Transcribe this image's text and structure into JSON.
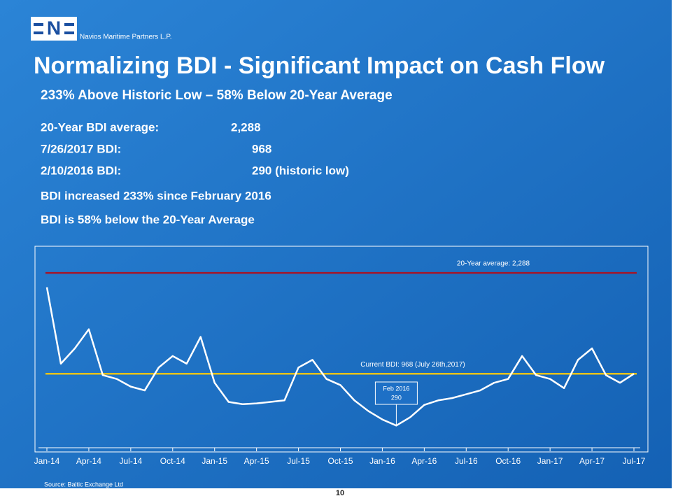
{
  "logo": "N",
  "company": "Navios Maritime Partners L.P.",
  "title": "Normalizing BDI  - Significant Impact on Cash Flow",
  "subtitle": "233% Above Historic Low – 58% Below 20-Year Average",
  "stats": [
    [
      "20-Year BDI average:",
      "2,288"
    ],
    [
      "7/26/2017 BDI:",
      "968"
    ],
    [
      "2/10/2016  BDI:",
      "290 (historic low)"
    ]
  ],
  "bullets": [
    "BDI increased 233% since February 2016",
    "BDI is 58% below the 20-Year Average"
  ],
  "chart_data": {
    "type": "line",
    "categories": [
      "Jan-14",
      null,
      null,
      "Apr-14",
      null,
      null,
      "Jul-14",
      null,
      null,
      "Oct-14",
      null,
      null,
      "Jan-15",
      null,
      null,
      "Apr-15",
      null,
      null,
      "Jul-15",
      null,
      null,
      "Oct-15",
      null,
      null,
      "Jan-16",
      null,
      null,
      "Apr-16",
      null,
      null,
      "Jul-16",
      null,
      null,
      "Oct-16",
      null,
      null,
      "Jan-17",
      null,
      null,
      "Apr-17",
      null,
      null,
      "Jul-17"
    ],
    "values": [
      2100,
      1100,
      1300,
      1550,
      950,
      900,
      800,
      750,
      1050,
      1200,
      1100,
      1450,
      850,
      600,
      570,
      580,
      600,
      620,
      1050,
      1150,
      900,
      820,
      620,
      480,
      370,
      290,
      400,
      560,
      620,
      650,
      700,
      750,
      850,
      900,
      1200,
      950,
      900,
      780,
      1150,
      1300,
      950,
      850,
      968
    ],
    "color": "#ffffff",
    "ylim": [
      0,
      2600
    ],
    "reference_lines": [
      {
        "label": "20-Year average: 2,288",
        "value": 2288,
        "color": "#a3162a"
      },
      {
        "label": "Current BDI: 968 (July 26th,2017)",
        "value": 968,
        "color": "#e6c21c"
      }
    ],
    "annotation": {
      "text": "Feb 2016",
      "value": 290
    }
  },
  "source": "Source: Baltic Exchange Ltd",
  "page": "10"
}
